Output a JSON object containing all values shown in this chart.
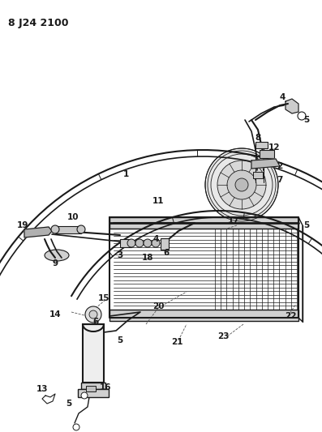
{
  "title": "8 J24 2100",
  "bg_color": "#ffffff",
  "line_color": "#1a1a1a",
  "title_fontsize": 9,
  "label_fontsize": 7.5,
  "fig_width": 3.97,
  "fig_height": 5.33,
  "dpi": 100
}
